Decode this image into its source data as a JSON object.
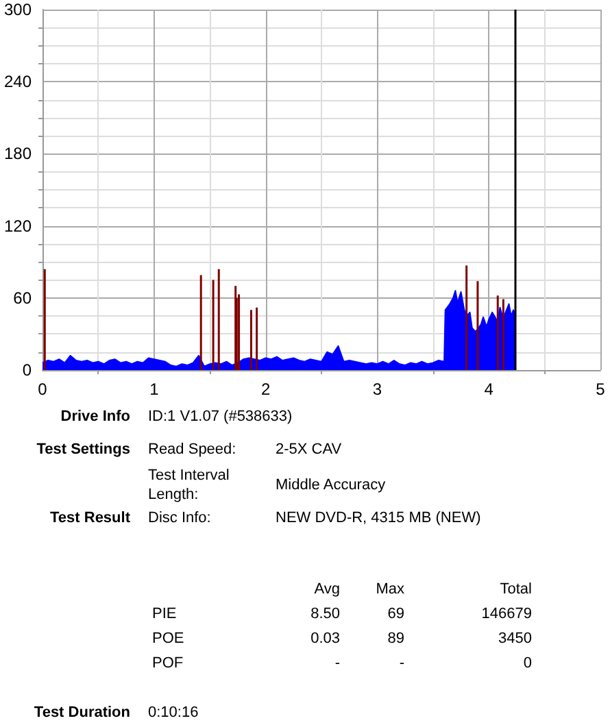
{
  "chart_data": {
    "type": "area",
    "xlim": [
      0,
      5
    ],
    "xticks": [
      0,
      1,
      2,
      3,
      4,
      5
    ],
    "ylim": [
      0,
      300
    ],
    "yticks": [
      0,
      60,
      120,
      180,
      240,
      300
    ],
    "grid": true,
    "marker": "none",
    "series": [
      {
        "color": "#0000ff",
        "x": [
          0,
          0.05,
          0.1,
          0.15,
          0.2,
          0.25,
          0.3,
          0.35,
          0.4,
          0.45,
          0.5,
          0.55,
          0.6,
          0.65,
          0.7,
          0.75,
          0.8,
          0.85,
          0.9,
          0.95,
          1.0,
          1.05,
          1.1,
          1.15,
          1.2,
          1.25,
          1.3,
          1.35,
          1.4,
          1.45,
          1.5,
          1.55,
          1.6,
          1.65,
          1.7,
          1.75,
          1.8,
          1.85,
          1.9,
          1.95,
          2.0,
          2.05,
          2.1,
          2.15,
          2.2,
          2.25,
          2.3,
          2.35,
          2.4,
          2.45,
          2.5,
          2.55,
          2.6,
          2.65,
          2.7,
          2.75,
          2.8,
          2.85,
          2.9,
          2.95,
          3.0,
          3.05,
          3.1,
          3.15,
          3.2,
          3.25,
          3.3,
          3.35,
          3.4,
          3.45,
          3.5,
          3.55,
          3.6,
          3.61,
          3.65,
          3.68,
          3.7,
          3.72,
          3.75,
          3.78,
          3.8,
          3.83,
          3.85,
          3.88,
          3.9,
          3.93,
          3.95,
          3.98,
          4.0,
          4.03,
          4.05,
          4.08,
          4.1,
          4.13,
          4.15,
          4.18,
          4.2,
          4.22,
          4.24
        ],
        "values": [
          6,
          8,
          7,
          9,
          6,
          12,
          8,
          7,
          8,
          6,
          7,
          5,
          8,
          9,
          6,
          7,
          5,
          7,
          6,
          10,
          9,
          8,
          7,
          4,
          3,
          5,
          4,
          6,
          12,
          3,
          5,
          6,
          5,
          7,
          4,
          6,
          9,
          10,
          9,
          8,
          10,
          9,
          11,
          8,
          9,
          10,
          8,
          7,
          9,
          8,
          7,
          15,
          13,
          20,
          7,
          8,
          7,
          6,
          5,
          6,
          5,
          7,
          5,
          8,
          5,
          4,
          6,
          5,
          7,
          5,
          6,
          8,
          7,
          50,
          55,
          60,
          66,
          56,
          65,
          50,
          45,
          48,
          35,
          32,
          34,
          38,
          44,
          36,
          42,
          48,
          45,
          40,
          52,
          42,
          48,
          55,
          45,
          50,
          45
        ]
      },
      {
        "type": "bar",
        "color": "#800000",
        "x": [
          0.02,
          1.42,
          1.53,
          1.58,
          1.73,
          1.74,
          1.76,
          1.87,
          1.92,
          3.8,
          3.9,
          4.08,
          4.13
        ],
        "values": [
          84,
          79,
          75,
          84,
          70,
          60,
          63,
          50,
          52,
          87,
          74,
          62,
          59
        ]
      }
    ],
    "ref_lines": [
      {
        "axis": "x",
        "value": 4.24,
        "color": "#000000"
      }
    ],
    "annotations": [
      "Drive Info",
      "ID:1 V1.07 (#538633)",
      "Test Settings",
      "Read Speed:",
      "2-5X CAV",
      "Test Interval Length:",
      "Middle Accuracy",
      "Test Result",
      "Disc Info:",
      "NEW DVD-R, 4315 MB (NEW)",
      "Avg",
      "Max",
      "Total",
      "PIE",
      "8.50",
      "69",
      "146679",
      "POE",
      "0.03",
      "89",
      "3450",
      "POF",
      "-",
      "-",
      "0",
      "Test Duration",
      "0:10:16"
    ]
  }
}
